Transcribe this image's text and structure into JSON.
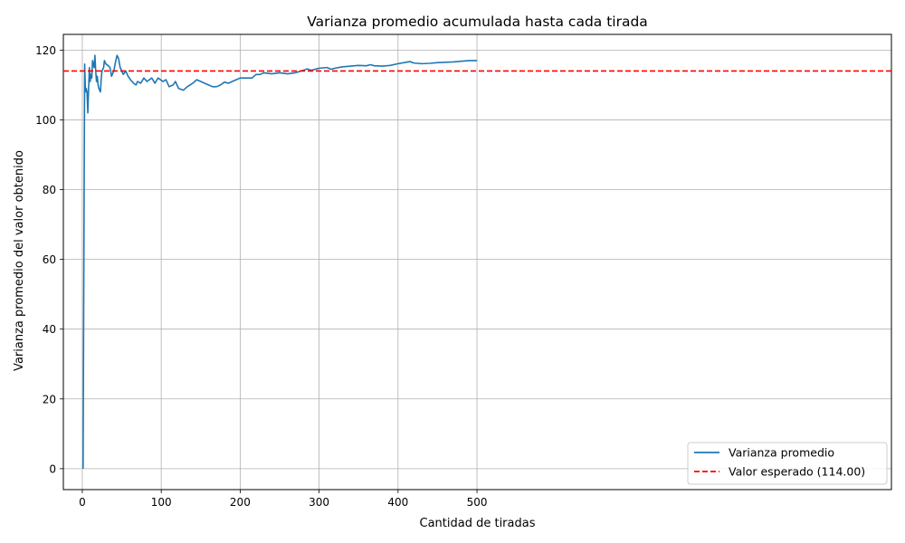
{
  "chart_data": {
    "type": "line",
    "title": "Varianza promedio acumulada hasta cada tirada",
    "xlabel": "Cantidad de tiradas",
    "ylabel": "Varianza promedio del valor obtenido",
    "xlim": [
      -24,
      1025
    ],
    "ylim": [
      -6,
      124.5
    ],
    "x_ticks": [
      0,
      100,
      200,
      300,
      400,
      500
    ],
    "y_ticks": [
      0,
      20,
      40,
      60,
      80,
      100,
      120
    ],
    "grid": true,
    "legend_position": "lower-right",
    "series": [
      {
        "name": "Varianza promedio",
        "style": "solid",
        "color": "#1f77b4",
        "points": [
          [
            1,
            0
          ],
          [
            2,
            60
          ],
          [
            3,
            116
          ],
          [
            4,
            108
          ],
          [
            5,
            109
          ],
          [
            6,
            108
          ],
          [
            7,
            102
          ],
          [
            8,
            109
          ],
          [
            9,
            115
          ],
          [
            10,
            111
          ],
          [
            11,
            113
          ],
          [
            12,
            112
          ],
          [
            13,
            117
          ],
          [
            14,
            116
          ],
          [
            15,
            115
          ],
          [
            16,
            118.5
          ],
          [
            17,
            114
          ],
          [
            18,
            111
          ],
          [
            19,
            112.5
          ],
          [
            20,
            110
          ],
          [
            21,
            109
          ],
          [
            22,
            108.5
          ],
          [
            23,
            108
          ],
          [
            24,
            112
          ],
          [
            25,
            114
          ],
          [
            27,
            115
          ],
          [
            28,
            117
          ],
          [
            30,
            116
          ],
          [
            33,
            115.5
          ],
          [
            35,
            115
          ],
          [
            36,
            114
          ],
          [
            37,
            112.5
          ],
          [
            38,
            113
          ],
          [
            40,
            114
          ],
          [
            42,
            116.5
          ],
          [
            44,
            118.5
          ],
          [
            46,
            117.5
          ],
          [
            48,
            115
          ],
          [
            50,
            114
          ],
          [
            52,
            113
          ],
          [
            55,
            114
          ],
          [
            58,
            112.5
          ],
          [
            61,
            111.5
          ],
          [
            65,
            110.5
          ],
          [
            68,
            110
          ],
          [
            70,
            111
          ],
          [
            74,
            110.5
          ],
          [
            78,
            112
          ],
          [
            82,
            111
          ],
          [
            88,
            112
          ],
          [
            92,
            110.5
          ],
          [
            96,
            112
          ],
          [
            102,
            111
          ],
          [
            106,
            111.5
          ],
          [
            110,
            109.5
          ],
          [
            115,
            110
          ],
          [
            118,
            111
          ],
          [
            122,
            109
          ],
          [
            128,
            108.5
          ],
          [
            133,
            109.5
          ],
          [
            140,
            110.5
          ],
          [
            145,
            111.5
          ],
          [
            150,
            111
          ],
          [
            155,
            110.5
          ],
          [
            160,
            110
          ],
          [
            165,
            109.5
          ],
          [
            170,
            109.5
          ],
          [
            175,
            110
          ],
          [
            180,
            110.8
          ],
          [
            185,
            110.5
          ],
          [
            190,
            111
          ],
          [
            195,
            111.5
          ],
          [
            200,
            112
          ],
          [
            205,
            112
          ],
          [
            210,
            112
          ],
          [
            215,
            112
          ],
          [
            220,
            113
          ],
          [
            225,
            113
          ],
          [
            230,
            113.5
          ],
          [
            240,
            113.2
          ],
          [
            250,
            113.5
          ],
          [
            260,
            113.2
          ],
          [
            270,
            113.5
          ],
          [
            280,
            114.2
          ],
          [
            285,
            114.6
          ],
          [
            290,
            114.2
          ],
          [
            295,
            114.5
          ],
          [
            300,
            114.8
          ],
          [
            310,
            115
          ],
          [
            315,
            114.5
          ],
          [
            320,
            114.8
          ],
          [
            330,
            115.2
          ],
          [
            340,
            115.4
          ],
          [
            350,
            115.6
          ],
          [
            360,
            115.5
          ],
          [
            365,
            115.8
          ],
          [
            370,
            115.5
          ],
          [
            380,
            115.4
          ],
          [
            390,
            115.6
          ],
          [
            400,
            116.1
          ],
          [
            410,
            116.5
          ],
          [
            415,
            116.7
          ],
          [
            420,
            116.3
          ],
          [
            430,
            116.1
          ],
          [
            440,
            116.2
          ],
          [
            450,
            116.4
          ],
          [
            460,
            116.5
          ],
          [
            470,
            116.6
          ],
          [
            480,
            116.8
          ],
          [
            490,
            117
          ],
          [
            500,
            117
          ]
        ]
      },
      {
        "name": "Valor esperado (114.00)",
        "style": "dashed",
        "color": "#ff0000",
        "y": 114.0
      }
    ]
  }
}
